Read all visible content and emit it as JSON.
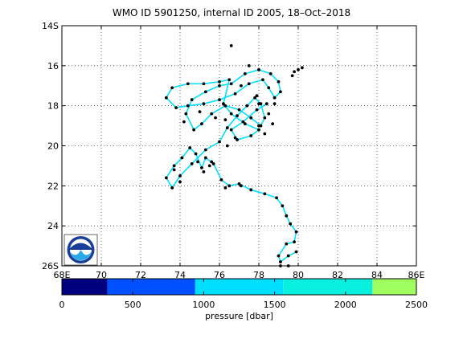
{
  "chart_data": {
    "type": "scatter",
    "title": "WMO ID 5901250, internal ID 2005, 18–Oct–2018",
    "x_ticks": [
      "68E",
      "70",
      "72",
      "74",
      "76",
      "78",
      "80",
      "82",
      "84",
      "86E"
    ],
    "y_ticks": [
      "14S",
      "16",
      "18",
      "20",
      "22",
      "24",
      "26S"
    ],
    "xlim": [
      68,
      86
    ],
    "ylim": [
      14,
      26
    ],
    "grid": true,
    "logo": "NOAA",
    "colorbar": {
      "label": "pressure [dbar]",
      "ticks": [
        "0",
        "500",
        "1000",
        "1500",
        "2000",
        "2500"
      ],
      "range": [
        0,
        2500
      ],
      "colors": [
        "#00007f",
        "#0050ff",
        "#00dfff",
        "#0af0e0",
        "#9fff60",
        "#ffa800"
      ],
      "bins": [
        0,
        320,
        940,
        1560,
        2190,
        2500
      ]
    },
    "track": [
      [
        79.9,
        25.3
      ],
      [
        79.5,
        25.5
      ],
      [
        79.1,
        25.8
      ],
      [
        79.0,
        25.5
      ],
      [
        79.4,
        24.9
      ],
      [
        79.8,
        24.8
      ],
      [
        79.9,
        24.3
      ],
      [
        79.6,
        23.9
      ],
      [
        79.4,
        23.5
      ],
      [
        79.2,
        23.0
      ],
      [
        78.9,
        22.6
      ],
      [
        78.3,
        22.4
      ],
      [
        77.6,
        22.2
      ],
      [
        77.0,
        21.9
      ],
      [
        76.5,
        22.0
      ],
      [
        76.1,
        21.7
      ],
      [
        75.7,
        20.9
      ],
      [
        75.3,
        20.6
      ],
      [
        75.1,
        21.1
      ],
      [
        74.8,
        20.4
      ],
      [
        74.5,
        20.1
      ],
      [
        74.1,
        20.6
      ],
      [
        73.7,
        21.0
      ],
      [
        73.3,
        21.6
      ],
      [
        73.6,
        22.1
      ],
      [
        74.0,
        21.5
      ],
      [
        74.6,
        20.9
      ],
      [
        75.3,
        20.2
      ],
      [
        76.0,
        19.8
      ],
      [
        76.4,
        19.1
      ],
      [
        76.9,
        18.5
      ],
      [
        77.4,
        18.0
      ],
      [
        77.8,
        17.6
      ],
      [
        78.1,
        17.9
      ],
      [
        78.3,
        18.6
      ],
      [
        78.1,
        19.0
      ],
      [
        77.6,
        18.6
      ],
      [
        77.0,
        18.2
      ],
      [
        76.3,
        18.0
      ],
      [
        75.6,
        18.4
      ],
      [
        75.1,
        18.9
      ],
      [
        74.7,
        19.2
      ],
      [
        74.3,
        18.4
      ],
      [
        74.6,
        17.7
      ],
      [
        75.3,
        17.3
      ],
      [
        76.0,
        17.0
      ],
      [
        76.6,
        16.9
      ],
      [
        77.3,
        16.4
      ],
      [
        78.0,
        16.2
      ],
      [
        78.6,
        16.4
      ],
      [
        79.0,
        16.8
      ],
      [
        79.1,
        17.3
      ],
      [
        78.8,
        17.6
      ],
      [
        78.5,
        17.1
      ],
      [
        78.2,
        16.7
      ],
      [
        77.5,
        16.9
      ],
      [
        76.8,
        17.4
      ],
      [
        76.0,
        17.7
      ],
      [
        75.2,
        17.9
      ],
      [
        74.4,
        18.0
      ],
      [
        73.8,
        18.1
      ],
      [
        73.3,
        17.6
      ],
      [
        73.6,
        17.1
      ],
      [
        74.4,
        16.9
      ],
      [
        75.2,
        16.9
      ],
      [
        76.0,
        16.8
      ],
      [
        76.5,
        16.7
      ],
      [
        76.2,
        17.9
      ],
      [
        76.6,
        18.4
      ],
      [
        77.3,
        18.9
      ],
      [
        78.0,
        19.2
      ],
      [
        77.6,
        19.5
      ],
      [
        76.9,
        19.7
      ],
      [
        76.6,
        19.2
      ],
      [
        77.2,
        18.8
      ],
      [
        77.9,
        18.2
      ],
      [
        78.4,
        17.9
      ]
    ],
    "extra_points": [
      [
        76.6,
        15.0
      ],
      [
        79.8,
        16.3
      ],
      [
        80.0,
        16.2
      ],
      [
        80.2,
        16.1
      ],
      [
        79.7,
        16.5
      ],
      [
        75.2,
        21.3
      ],
      [
        75.6,
        20.8
      ],
      [
        74.9,
        20.8
      ],
      [
        75.5,
        21.0
      ],
      [
        77.9,
        17.5
      ],
      [
        78.0,
        17.9
      ],
      [
        77.1,
        17.0
      ],
      [
        76.3,
        18.7
      ],
      [
        75.8,
        18.6
      ],
      [
        78.5,
        18.4
      ],
      [
        78.7,
        18.9
      ],
      [
        76.8,
        19.6
      ],
      [
        76.4,
        20.0
      ],
      [
        74.0,
        21.8
      ],
      [
        73.7,
        21.2
      ],
      [
        76.3,
        22.1
      ],
      [
        77.1,
        22.0
      ],
      [
        79.5,
        26.0
      ],
      [
        79.1,
        26.0
      ],
      [
        78.0,
        19.0
      ],
      [
        78.3,
        19.4
      ],
      [
        74.2,
        18.8
      ],
      [
        75.0,
        18.3
      ],
      [
        77.5,
        16.0
      ],
      [
        78.8,
        17.9
      ]
    ]
  }
}
